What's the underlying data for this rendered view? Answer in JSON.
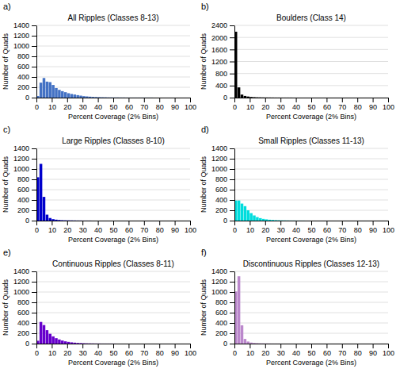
{
  "chart_data": [
    {
      "type": "histogram",
      "title": "All Ripples (Classes 8-13)",
      "annotations": [
        "a)"
      ],
      "x_label": "Percent Coverage (2% Bins)",
      "y_label": "Number of Quads",
      "color": "#4472C4",
      "bins": [
        0,
        2,
        4,
        6,
        8,
        10,
        12,
        14,
        16,
        18,
        20,
        22,
        24,
        26,
        28,
        30,
        32,
        34,
        36,
        38,
        40,
        42,
        44,
        46,
        48,
        50,
        52,
        54,
        56,
        58,
        60,
        62,
        64,
        66,
        68,
        70,
        72,
        74,
        76,
        78,
        80,
        82,
        84,
        86,
        88,
        90,
        92,
        94,
        96,
        98,
        100
      ],
      "values": [
        30,
        290,
        380,
        310,
        300,
        245,
        185,
        150,
        125,
        105,
        85,
        70,
        60,
        48,
        38,
        28,
        23,
        18,
        14,
        11,
        9,
        7,
        6,
        4,
        4,
        3,
        3,
        2,
        2,
        1,
        1,
        1,
        1,
        1,
        1,
        1,
        1,
        1,
        0,
        0,
        0,
        0,
        0,
        0,
        0,
        0,
        0,
        0,
        0,
        0
      ],
      "xlim": [
        0,
        100
      ],
      "xticks": [
        0,
        10,
        20,
        30,
        40,
        50,
        60,
        70,
        80,
        90,
        100
      ],
      "ylim": [
        0,
        1400
      ],
      "yticks": [
        0,
        200,
        400,
        600,
        800,
        1000,
        1200,
        1400
      ],
      "grid": true
    },
    {
      "type": "histogram",
      "title": "Boulders (Class 14)",
      "annotations": [
        "b)"
      ],
      "x_label": "Percent Coverage (2% Bins)",
      "y_label": "Number of Quads",
      "color": "#000000",
      "bins": [
        0,
        2,
        4,
        6,
        8,
        10,
        12,
        14,
        16,
        18,
        20,
        22,
        24,
        26,
        28,
        30,
        32,
        34,
        36,
        38,
        40,
        42,
        44,
        46,
        48,
        50,
        52,
        54,
        56,
        58,
        60,
        62,
        64,
        66,
        68,
        70,
        72,
        74,
        76,
        78,
        80,
        82,
        84,
        86,
        88,
        90,
        92,
        94,
        96,
        98,
        100
      ],
      "values": [
        2190,
        340,
        100,
        55,
        35,
        22,
        15,
        10,
        8,
        6,
        5,
        4,
        3,
        2,
        2,
        1,
        1,
        1,
        1,
        0,
        0,
        0,
        0,
        0,
        0,
        0,
        0,
        0,
        0,
        0,
        0,
        0,
        0,
        0,
        0,
        0,
        0,
        0,
        0,
        0,
        0,
        0,
        0,
        0,
        0,
        0,
        0,
        0,
        0,
        0
      ],
      "xlim": [
        0,
        100
      ],
      "xticks": [
        0,
        10,
        20,
        30,
        40,
        50,
        60,
        70,
        80,
        90,
        100
      ],
      "ylim": [
        0,
        2400
      ],
      "yticks": [
        0,
        400,
        800,
        1200,
        1600,
        2000,
        2400
      ],
      "grid": true
    },
    {
      "type": "histogram",
      "title": "Large Ripples (Classes 8-10)",
      "annotations": [
        "c)"
      ],
      "x_label": "Percent Coverage (2% Bins)",
      "y_label": "Number of Quads",
      "color": "#0000CC",
      "bins": [
        0,
        2,
        4,
        6,
        8,
        10,
        12,
        14,
        16,
        18,
        20,
        22,
        24,
        26,
        28,
        30,
        32,
        34,
        36,
        38,
        40,
        42,
        44,
        46,
        48,
        50,
        52,
        54,
        56,
        58,
        60,
        62,
        64,
        66,
        68,
        70,
        72,
        74,
        76,
        78,
        80,
        82,
        84,
        86,
        88,
        90,
        92,
        94,
        96,
        98,
        100
      ],
      "values": [
        840,
        1100,
        460,
        115,
        50,
        28,
        18,
        12,
        8,
        6,
        5,
        4,
        3,
        2,
        2,
        1,
        1,
        1,
        0,
        0,
        0,
        0,
        0,
        0,
        0,
        0,
        0,
        0,
        0,
        0,
        0,
        0,
        0,
        0,
        0,
        0,
        0,
        0,
        0,
        0,
        0,
        0,
        0,
        0,
        0,
        0,
        0,
        0,
        0,
        0
      ],
      "xlim": [
        0,
        100
      ],
      "xticks": [
        0,
        10,
        20,
        30,
        40,
        50,
        60,
        70,
        80,
        90,
        100
      ],
      "ylim": [
        0,
        1400
      ],
      "yticks": [
        0,
        200,
        400,
        600,
        800,
        1000,
        1200,
        1400
      ],
      "grid": true
    },
    {
      "type": "histogram",
      "title": "Small Ripples (Classes 11-13)",
      "annotations": [
        "d)"
      ],
      "x_label": "Percent Coverage (2% Bins)",
      "y_label": "Number of Quads",
      "color": "#00DDDD",
      "bins": [
        0,
        2,
        4,
        6,
        8,
        10,
        12,
        14,
        16,
        18,
        20,
        22,
        24,
        26,
        28,
        30,
        32,
        34,
        36,
        38,
        40,
        42,
        44,
        46,
        48,
        50,
        52,
        54,
        56,
        58,
        60,
        62,
        64,
        66,
        68,
        70,
        72,
        74,
        76,
        78,
        80,
        82,
        84,
        86,
        88,
        90,
        92,
        94,
        96,
        98,
        100
      ],
      "values": [
        390,
        390,
        330,
        280,
        200,
        145,
        100,
        68,
        48,
        33,
        24,
        17,
        13,
        9,
        7,
        5,
        4,
        3,
        2,
        2,
        1,
        1,
        1,
        0,
        0,
        0,
        0,
        0,
        0,
        0,
        0,
        0,
        0,
        0,
        0,
        0,
        0,
        0,
        0,
        0,
        0,
        0,
        0,
        0,
        0,
        0,
        0,
        0,
        0,
        0
      ],
      "xlim": [
        0,
        100
      ],
      "xticks": [
        0,
        10,
        20,
        30,
        40,
        50,
        60,
        70,
        80,
        90,
        100
      ],
      "ylim": [
        0,
        1400
      ],
      "yticks": [
        0,
        200,
        400,
        600,
        800,
        1000,
        1200,
        1400
      ],
      "grid": true
    },
    {
      "type": "histogram",
      "title": "Continuous Ripples (Classes 8-11)",
      "annotations": [
        "e)"
      ],
      "x_label": "Percent Coverage (2% Bins)",
      "y_label": "Number of Quads",
      "color": "#6600CC",
      "bins": [
        0,
        2,
        4,
        6,
        8,
        10,
        12,
        14,
        16,
        18,
        20,
        22,
        24,
        26,
        28,
        30,
        32,
        34,
        36,
        38,
        40,
        42,
        44,
        46,
        48,
        50,
        52,
        54,
        56,
        58,
        60,
        62,
        64,
        66,
        68,
        70,
        72,
        74,
        76,
        78,
        80,
        82,
        84,
        86,
        88,
        90,
        92,
        94,
        96,
        98,
        100
      ],
      "values": [
        55,
        420,
        360,
        260,
        190,
        140,
        105,
        80,
        60,
        44,
        33,
        24,
        18,
        13,
        10,
        7,
        5,
        4,
        3,
        2,
        2,
        1,
        1,
        1,
        1,
        1,
        0,
        0,
        0,
        0,
        0,
        0,
        0,
        0,
        0,
        0,
        0,
        0,
        0,
        0,
        0,
        0,
        0,
        0,
        0,
        0,
        0,
        0,
        0,
        0
      ],
      "xlim": [
        0,
        100
      ],
      "xticks": [
        0,
        10,
        20,
        30,
        40,
        50,
        60,
        70,
        80,
        90,
        100
      ],
      "ylim": [
        0,
        1400
      ],
      "yticks": [
        0,
        200,
        400,
        600,
        800,
        1000,
        1200,
        1400
      ],
      "grid": true
    },
    {
      "type": "histogram",
      "title": "Discontinuous Ripples (Classes 12-13)",
      "annotations": [
        "f)"
      ],
      "x_label": "Percent Coverage (2% Bins)",
      "y_label": "Number of Quads",
      "color": "#BB88CC",
      "bins": [
        0,
        2,
        4,
        6,
        8,
        10,
        12,
        14,
        16,
        18,
        20,
        22,
        24,
        26,
        28,
        30,
        32,
        34,
        36,
        38,
        40,
        42,
        44,
        46,
        48,
        50,
        52,
        54,
        56,
        58,
        60,
        62,
        64,
        66,
        68,
        70,
        72,
        74,
        76,
        78,
        80,
        82,
        84,
        86,
        88,
        90,
        92,
        94,
        96,
        98,
        100
      ],
      "values": [
        1010,
        1305,
        355,
        90,
        40,
        20,
        12,
        8,
        5,
        4,
        3,
        2,
        1,
        1,
        1,
        0,
        0,
        0,
        0,
        0,
        0,
        0,
        0,
        0,
        0,
        0,
        0,
        0,
        0,
        0,
        0,
        0,
        0,
        0,
        0,
        0,
        0,
        0,
        0,
        0,
        0,
        0,
        0,
        0,
        0,
        0,
        0,
        0,
        0,
        0
      ],
      "xlim": [
        0,
        100
      ],
      "xticks": [
        0,
        10,
        20,
        30,
        40,
        50,
        60,
        70,
        80,
        90,
        100
      ],
      "ylim": [
        0,
        1400
      ],
      "yticks": [
        0,
        200,
        400,
        600,
        800,
        1000,
        1200,
        1400
      ],
      "grid": true
    }
  ]
}
